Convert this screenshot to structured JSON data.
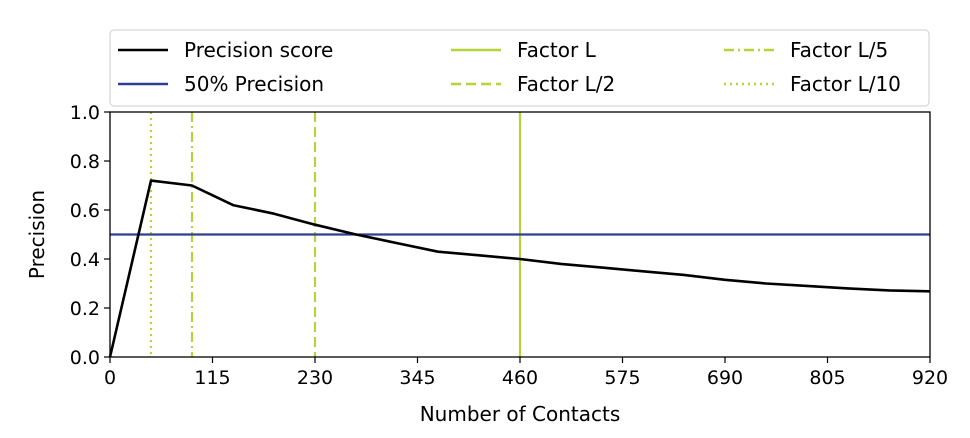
{
  "chart_data": {
    "type": "line",
    "xlabel": "Number of Contacts",
    "ylabel": "Precision",
    "xlim": [
      0,
      920
    ],
    "ylim": [
      0.0,
      1.0
    ],
    "xticks": [
      0,
      115,
      230,
      345,
      460,
      575,
      690,
      805,
      920
    ],
    "yticks": [
      0.0,
      0.2,
      0.4,
      0.6,
      0.8,
      1.0
    ],
    "xtick_labels": [
      "0",
      "115",
      "230",
      "345",
      "460",
      "575",
      "690",
      "805",
      "920"
    ],
    "ytick_labels": [
      "0.0",
      "0.2",
      "0.4",
      "0.6",
      "0.8",
      "1.0"
    ],
    "grid": false,
    "legend_position": "top",
    "series": [
      {
        "name": "Precision score",
        "color": "#000000",
        "style": "solid",
        "x": [
          0,
          46,
          92,
          138,
          184,
          230,
          276,
          322,
          368,
          414,
          460,
          506,
          552,
          598,
          644,
          690,
          736,
          782,
          828,
          874,
          920
        ],
        "y": [
          0.0,
          0.72,
          0.7,
          0.62,
          0.585,
          0.54,
          0.5,
          0.465,
          0.43,
          0.415,
          0.4,
          0.38,
          0.365,
          0.35,
          0.335,
          0.315,
          0.3,
          0.29,
          0.28,
          0.272,
          0.268
        ]
      }
    ],
    "horizontal_lines": [
      {
        "name": "50% Precision",
        "y": 0.5,
        "color": "#2e3f8f",
        "style": "solid"
      }
    ],
    "vertical_lines": [
      {
        "name": "Factor L",
        "x": 460,
        "color": "#b5d43a",
        "style": "solid"
      },
      {
        "name": "Factor L/2",
        "x": 230,
        "color": "#b5d43a",
        "style": "dashed"
      },
      {
        "name": "Factor L/5",
        "x": 92,
        "color": "#b5d43a",
        "style": "dashdot"
      },
      {
        "name": "Factor L/10",
        "x": 46,
        "color": "#b5d43a",
        "style": "dotted"
      }
    ],
    "legend": [
      {
        "label": "Precision score",
        "color": "#000000",
        "style": "solid"
      },
      {
        "label": "Factor L",
        "color": "#b5d43a",
        "style": "solid"
      },
      {
        "label": "Factor L/5",
        "color": "#b5d43a",
        "style": "dashdot"
      },
      {
        "label": "50% Precision",
        "color": "#2e3f8f",
        "style": "solid"
      },
      {
        "label": "Factor L/2",
        "color": "#b5d43a",
        "style": "dashed"
      },
      {
        "label": "Factor L/10",
        "color": "#b5d43a",
        "style": "dotted"
      }
    ]
  }
}
